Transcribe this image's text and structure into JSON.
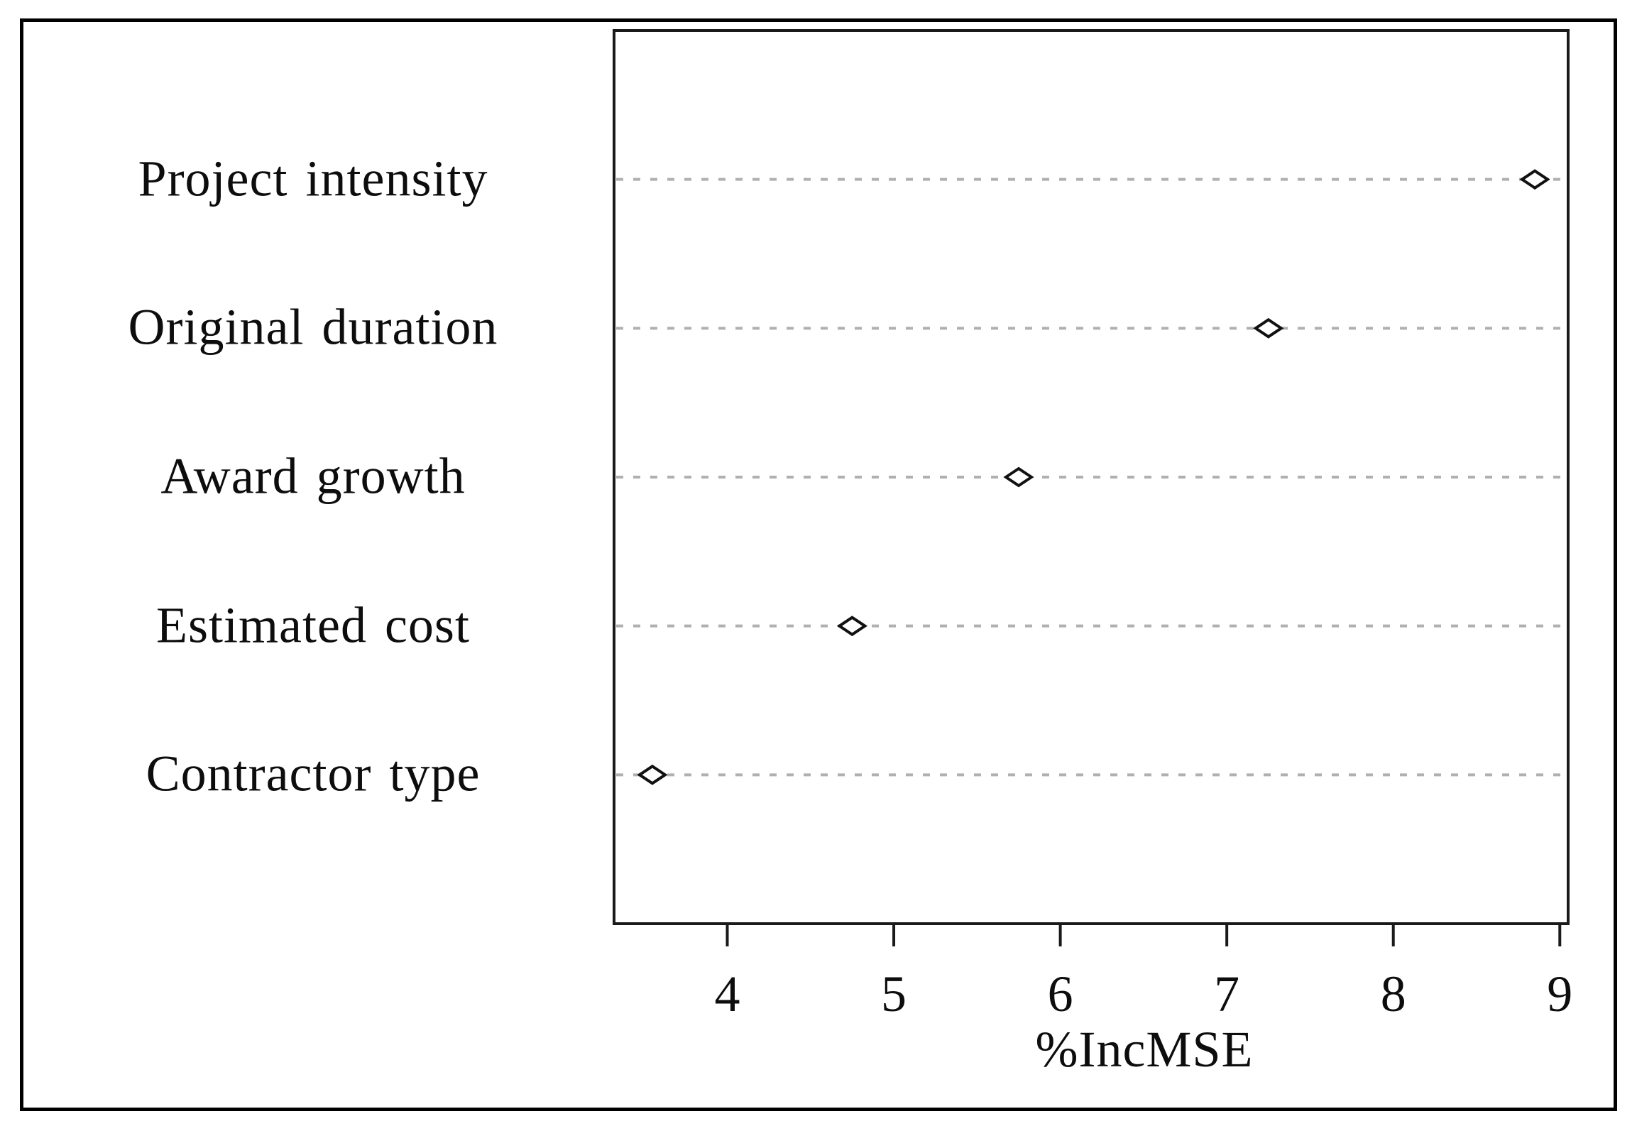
{
  "chart_data": {
    "type": "scatter",
    "variant": "dot-plot",
    "title": "",
    "xlabel": "%IncMSE",
    "categories": [
      "Project intensity",
      "Original duration",
      "Award growth",
      "Estimated cost",
      "Contractor type"
    ],
    "values": [
      8.85,
      7.25,
      5.75,
      4.75,
      3.55
    ],
    "xlim": [
      3.32,
      9.05
    ],
    "xticks": [
      4,
      5,
      6,
      7,
      8,
      9
    ],
    "grid": "horizontal-dashed",
    "legend": "none",
    "marker": "open-diamond",
    "colors": {
      "background": "#ffffff",
      "figure_border": "#000000",
      "axis": "#1a1a1a",
      "grid": "#b0b0b0",
      "marker_stroke": "#111111",
      "marker_fill": "#ffffff",
      "text": "#0d0d0d"
    }
  }
}
